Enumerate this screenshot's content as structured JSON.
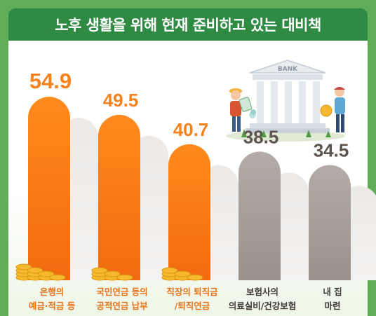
{
  "title": "노후 생활을 위해 현재 준비하고 있는 대비책",
  "illustration": {
    "bank_sign": "BANK"
  },
  "colors": {
    "frame": "#5fae57",
    "title_bg": "#2f8a43",
    "orange_top": "#ff8a1c",
    "orange_bottom": "#f26a10",
    "gray_top": "#b3aba7",
    "gray_bottom": "#9a918c",
    "orange_text": "#f5821f",
    "gray_text": "#5e544f",
    "coin": "#f5b82e"
  },
  "chart_data": {
    "type": "bar",
    "title": "노후 생활을 위해 현재 준비하고 있는 대비책",
    "categories": [
      [
        "은행의",
        "예금·적금 등"
      ],
      [
        "국민연금 등의",
        "공적연금 납부"
      ],
      [
        "직장의 퇴직금",
        "/퇴직연금"
      ],
      [
        "보험사의",
        "의료실비/건강보험"
      ],
      [
        "내 집",
        "마련"
      ]
    ],
    "values": [
      54.9,
      49.5,
      40.7,
      38.5,
      34.5
    ],
    "value_labels": [
      "54.9",
      "49.5",
      "40.7",
      "38.5",
      "34.5"
    ],
    "highlight": [
      true,
      true,
      true,
      false,
      false
    ],
    "ylim": [
      0,
      65
    ],
    "xlabel": "",
    "ylabel": ""
  }
}
